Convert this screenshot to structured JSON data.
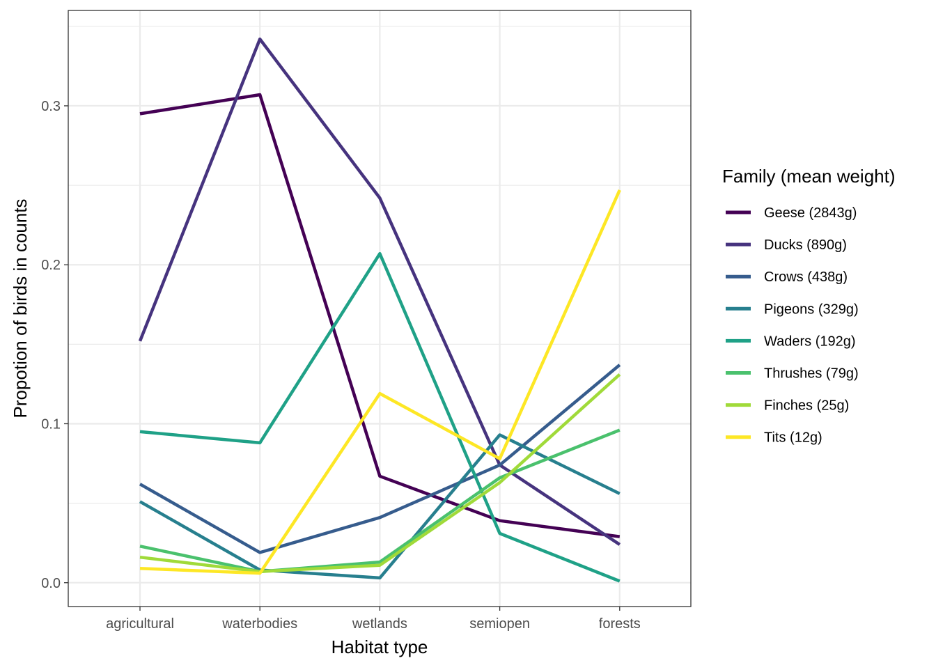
{
  "chart_data": {
    "type": "line",
    "xlabel": "Habitat type",
    "ylabel": "Propotion of birds in counts",
    "categories": [
      "agricultural",
      "waterbodies",
      "wetlands",
      "semiopen",
      "forests"
    ],
    "ylim": [
      -0.015,
      0.36
    ],
    "yticks": [
      0.0,
      0.1,
      0.2,
      0.3
    ],
    "ytick_labels": [
      "0.0",
      "0.1",
      "0.2",
      "0.3"
    ],
    "grid": true,
    "legend": {
      "title": "Family (mean weight)",
      "position": "right"
    },
    "series": [
      {
        "name": "Geese (2843g)",
        "color": "#440154",
        "values": [
          0.295,
          0.307,
          0.067,
          0.039,
          0.029
        ]
      },
      {
        "name": "Ducks (890g)",
        "color": "#46337e",
        "values": [
          0.152,
          0.342,
          0.242,
          0.074,
          0.024
        ]
      },
      {
        "name": "Crows (438g)",
        "color": "#365c8d",
        "values": [
          0.062,
          0.019,
          0.041,
          0.074,
          0.137
        ]
      },
      {
        "name": "Pigeons (329g)",
        "color": "#277f8e",
        "values": [
          0.051,
          0.008,
          0.003,
          0.093,
          0.056
        ]
      },
      {
        "name": "Waders (192g)",
        "color": "#1fa187",
        "values": [
          0.095,
          0.088,
          0.207,
          0.031,
          0.001
        ]
      },
      {
        "name": "Thrushes (79g)",
        "color": "#4ac16d",
        "values": [
          0.023,
          0.007,
          0.013,
          0.066,
          0.096
        ]
      },
      {
        "name": "Finches (25g)",
        "color": "#a0da39",
        "values": [
          0.016,
          0.007,
          0.011,
          0.063,
          0.131
        ]
      },
      {
        "name": "Tits (12g)",
        "color": "#fde725",
        "values": [
          0.009,
          0.006,
          0.119,
          0.078,
          0.247
        ]
      }
    ]
  }
}
